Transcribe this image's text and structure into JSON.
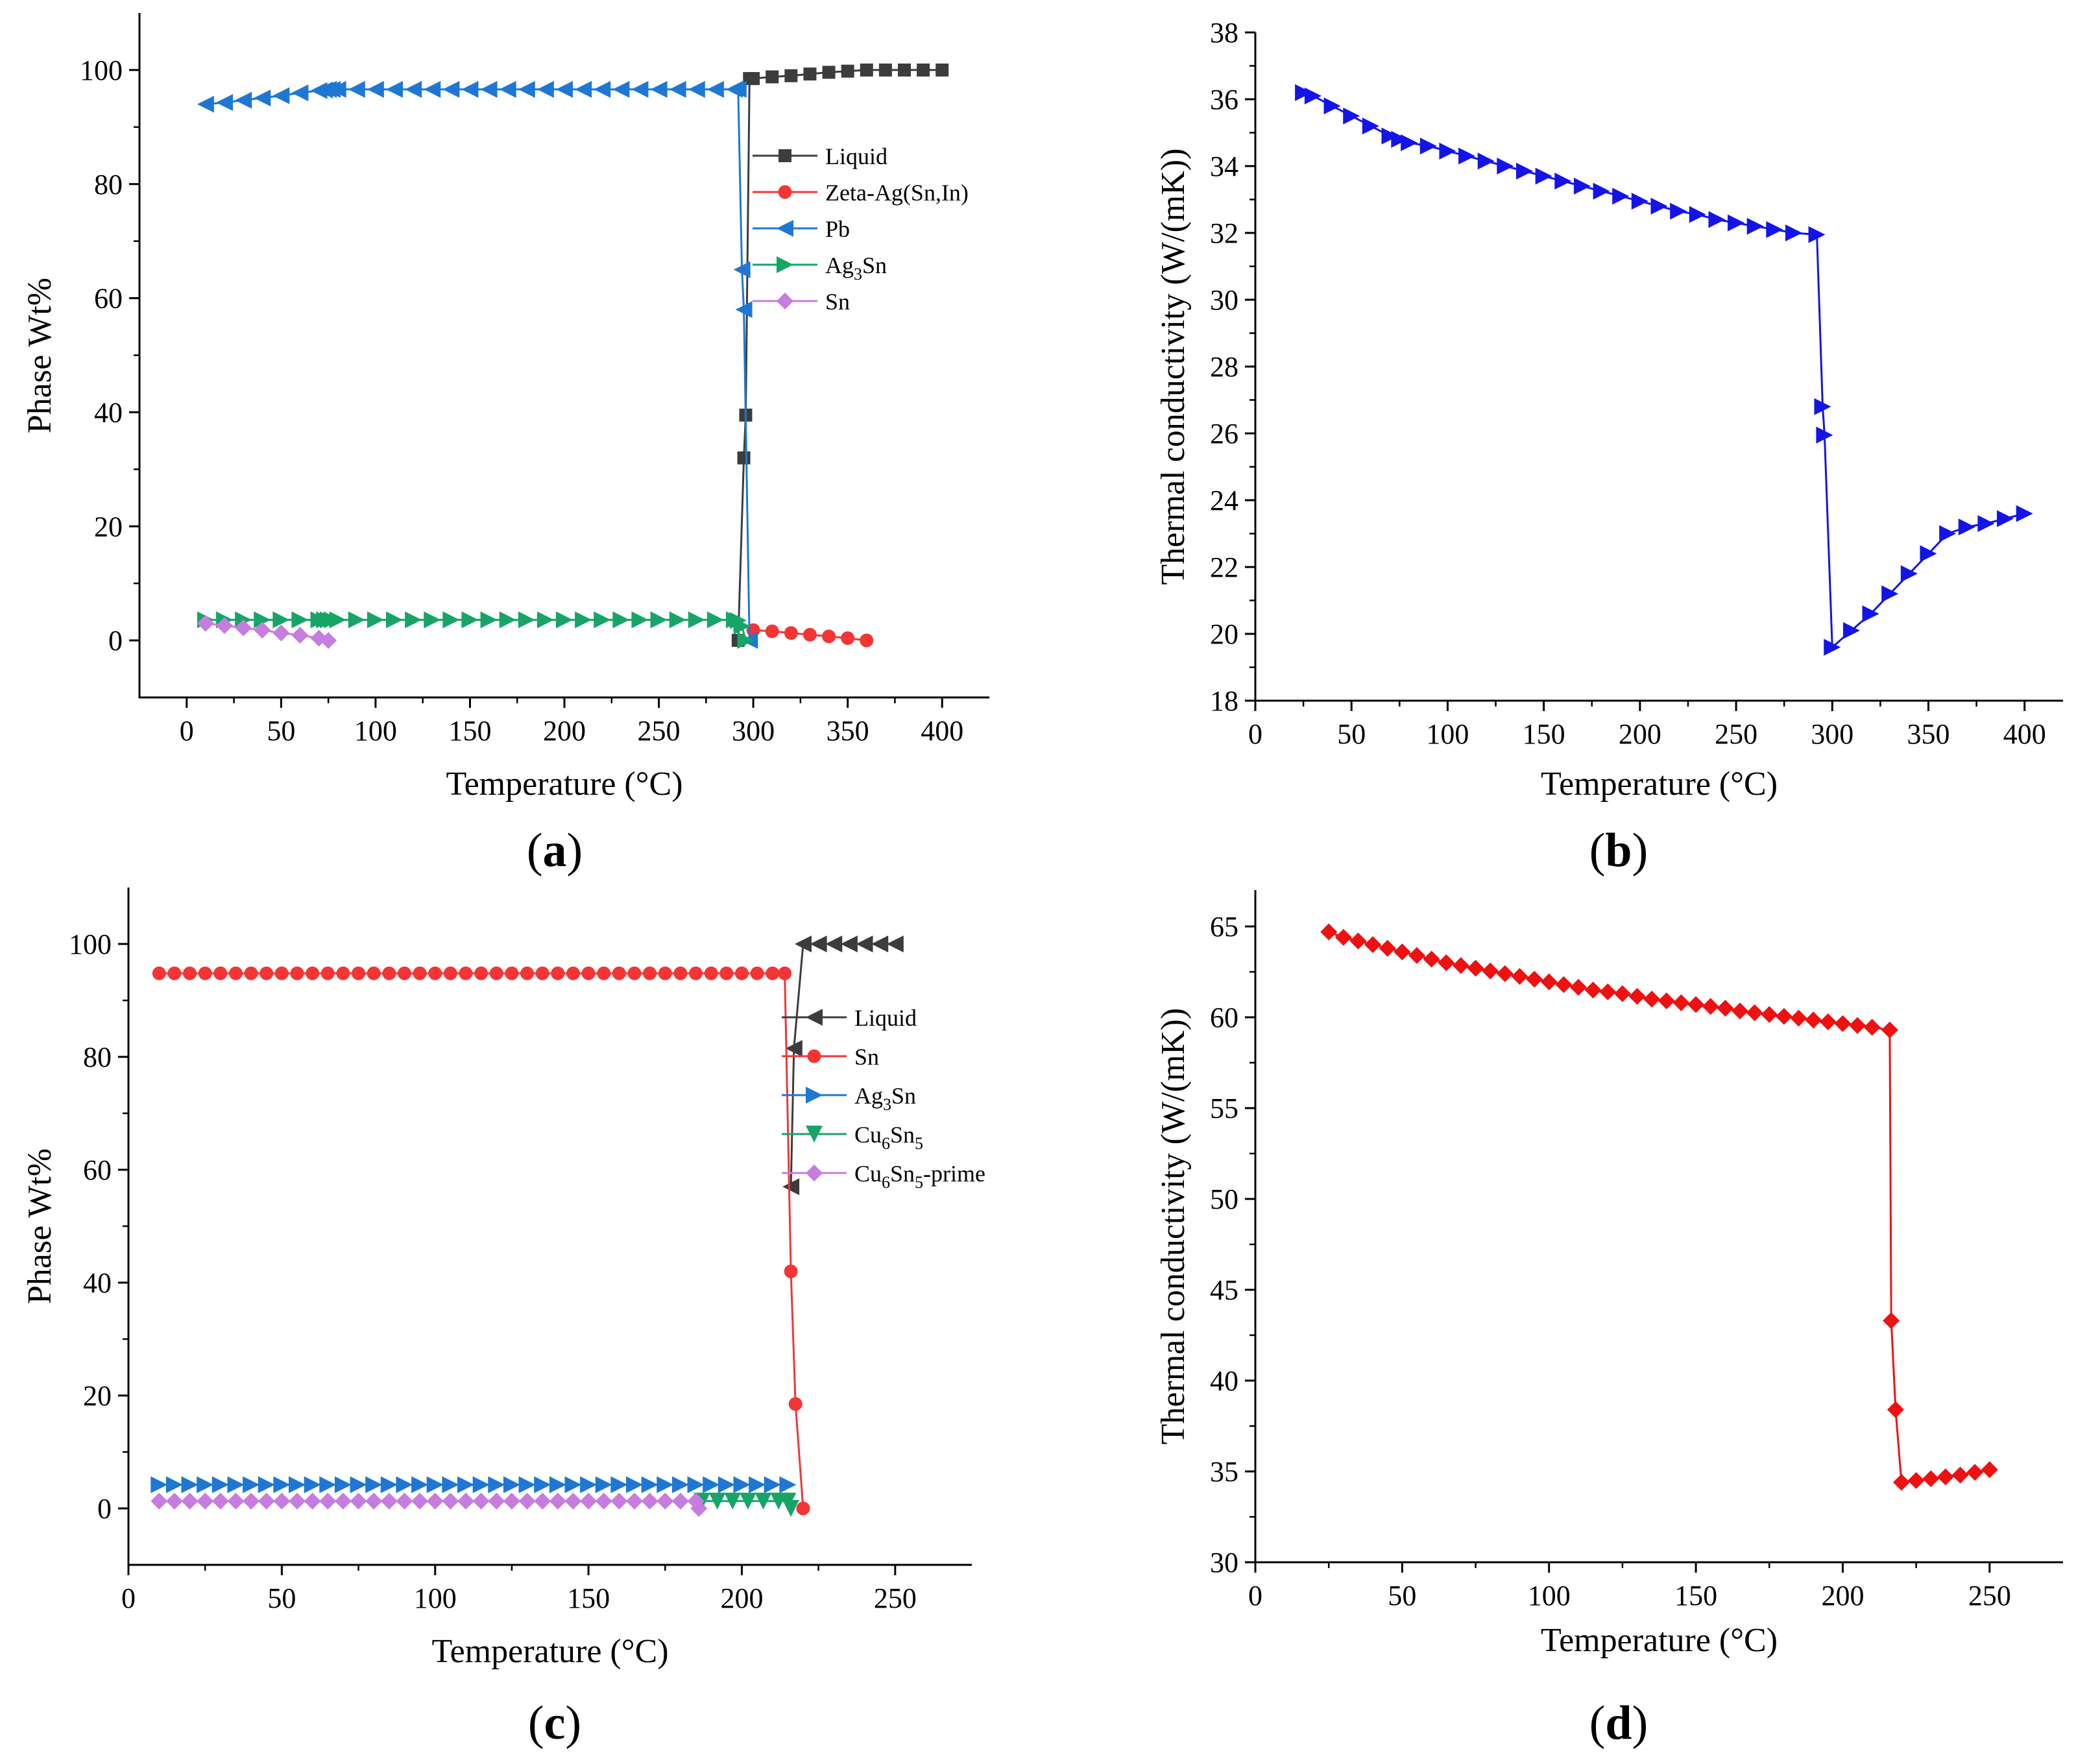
{
  "chart_data": [
    {
      "panel": "a",
      "type": "line",
      "xlabel": "Temperature (°C)",
      "ylabel": "Phase Wt%",
      "xlim": [
        -25,
        425
      ],
      "ylim": [
        -10,
        110
      ],
      "xticks": [
        0,
        50,
        100,
        150,
        200,
        250,
        300,
        350,
        400
      ],
      "yticks": [
        0,
        20,
        40,
        60,
        80,
        100
      ],
      "legend_position": "upper-right",
      "series": [
        {
          "name": "Liquid",
          "label_parts": [
            [
              "Liquid",
              ""
            ]
          ],
          "color": "#3c3c3c",
          "marker": "square",
          "x": [
            292,
            295,
            296,
            298,
            300,
            310,
            320,
            330,
            340,
            350,
            360,
            370,
            380,
            390,
            400
          ],
          "y": [
            0,
            32,
            39.5,
            98.5,
            98.5,
            98.8,
            99,
            99.3,
            99.6,
            99.8,
            100,
            100,
            100,
            100,
            100
          ]
        },
        {
          "name": "Zeta-Ag(Sn,In)",
          "label_parts": [
            [
              "Zeta-Ag(Sn,In)",
              ""
            ]
          ],
          "color": "#f33535",
          "marker": "circle",
          "x": [
            300,
            310,
            320,
            330,
            340,
            350,
            360
          ],
          "y": [
            1.8,
            1.6,
            1.3,
            1.0,
            0.7,
            0.4,
            0
          ]
        },
        {
          "name": "Pb",
          "label_parts": [
            [
              "Pb",
              ""
            ]
          ],
          "color": "#1f77d4",
          "marker": "triangle-left",
          "x": [
            10,
            20,
            30,
            40,
            50,
            60,
            70,
            73,
            75,
            77,
            80,
            90,
            100,
            110,
            120,
            130,
            140,
            150,
            160,
            170,
            180,
            190,
            200,
            210,
            220,
            230,
            240,
            250,
            260,
            270,
            280,
            290,
            292,
            294,
            295,
            298
          ],
          "y": [
            94,
            94.3,
            94.7,
            95.1,
            95.5,
            96,
            96.4,
            96.5,
            96.6,
            96.6,
            96.6,
            96.6,
            96.6,
            96.6,
            96.6,
            96.6,
            96.6,
            96.6,
            96.6,
            96.6,
            96.6,
            96.6,
            96.6,
            96.6,
            96.6,
            96.6,
            96.6,
            96.6,
            96.6,
            96.6,
            96.6,
            96.6,
            96.6,
            65,
            58,
            0
          ]
        },
        {
          "name": "Ag3Sn",
          "label_parts": [
            [
              "Ag",
              ""
            ],
            [
              "3",
              "sub"
            ],
            [
              "Sn",
              ""
            ]
          ],
          "color": "#17a567",
          "marker": "triangle-right",
          "x": [
            10,
            20,
            30,
            40,
            50,
            60,
            70,
            73,
            75,
            77,
            80,
            90,
            100,
            110,
            120,
            130,
            140,
            150,
            160,
            170,
            180,
            190,
            200,
            210,
            220,
            230,
            240,
            250,
            260,
            270,
            280,
            290,
            292,
            294,
            296
          ],
          "y": [
            3.6,
            3.6,
            3.6,
            3.6,
            3.6,
            3.6,
            3.6,
            3.6,
            3.6,
            3.6,
            3.6,
            3.6,
            3.6,
            3.6,
            3.6,
            3.6,
            3.6,
            3.6,
            3.6,
            3.6,
            3.6,
            3.6,
            3.6,
            3.6,
            3.6,
            3.6,
            3.6,
            3.6,
            3.6,
            3.6,
            3.6,
            3.6,
            3.5,
            2.5,
            0
          ]
        },
        {
          "name": "Sn",
          "label_parts": [
            [
              "Sn",
              ""
            ]
          ],
          "color": "#c77ce0",
          "marker": "diamond",
          "x": [
            10,
            20,
            30,
            40,
            50,
            60,
            70,
            75
          ],
          "y": [
            3,
            2.6,
            2.2,
            1.8,
            1.3,
            0.9,
            0.4,
            0
          ]
        }
      ]
    },
    {
      "panel": "b",
      "type": "line",
      "xlabel": "Temperature (°C)",
      "ylabel": "Thermal conductivity (W/(mK))",
      "xlim": [
        0,
        420
      ],
      "ylim": [
        18,
        38
      ],
      "xticks": [
        0,
        50,
        100,
        150,
        200,
        250,
        300,
        350,
        400
      ],
      "yticks": [
        18,
        20,
        22,
        24,
        26,
        28,
        30,
        32,
        34,
        36,
        38
      ],
      "series": [
        {
          "name": "Thermal conductivity",
          "color": "#1414e8",
          "marker": "triangle-right",
          "x": [
            25,
            30,
            40,
            50,
            60,
            70,
            75,
            80,
            90,
            100,
            110,
            120,
            130,
            140,
            150,
            160,
            170,
            180,
            190,
            200,
            210,
            220,
            230,
            240,
            250,
            260,
            270,
            280,
            292,
            295,
            296,
            300,
            310,
            320,
            330,
            340,
            350,
            360,
            370,
            380,
            390,
            400
          ],
          "y": [
            36.2,
            36.1,
            35.8,
            35.5,
            35.2,
            34.9,
            34.8,
            34.7,
            34.6,
            34.45,
            34.3,
            34.15,
            34.0,
            33.85,
            33.7,
            33.55,
            33.4,
            33.25,
            33.1,
            32.95,
            32.8,
            32.65,
            32.55,
            32.4,
            32.3,
            32.2,
            32.1,
            32.0,
            31.95,
            26.8,
            25.95,
            19.6,
            20.1,
            20.6,
            21.2,
            21.8,
            22.4,
            23.0,
            23.2,
            23.3,
            23.45,
            23.6
          ]
        }
      ]
    },
    {
      "panel": "c",
      "type": "line",
      "xlabel": "Temperature (°C)",
      "ylabel": "Phase Wt%",
      "xlim": [
        0,
        275
      ],
      "ylim": [
        -10,
        110
      ],
      "xticks": [
        0,
        50,
        100,
        150,
        200,
        250
      ],
      "yticks": [
        0,
        20,
        40,
        60,
        80,
        100
      ],
      "legend_position": "upper-right",
      "series": [
        {
          "name": "Liquid",
          "label_parts": [
            [
              "Liquid",
              ""
            ]
          ],
          "color": "#3c3c3c",
          "marker": "triangle-left",
          "x": [
            216,
            217,
            220,
            225,
            230,
            235,
            240,
            245,
            250
          ],
          "y": [
            57,
            81.5,
            100,
            100,
            100,
            100,
            100,
            100,
            100
          ]
        },
        {
          "name": "Sn",
          "label_parts": [
            [
              "Sn",
              ""
            ]
          ],
          "color": "#f33535",
          "marker": "circle",
          "x": [
            10,
            15,
            20,
            25,
            30,
            35,
            40,
            45,
            50,
            55,
            60,
            65,
            70,
            75,
            80,
            85,
            90,
            95,
            100,
            105,
            110,
            115,
            120,
            125,
            130,
            135,
            140,
            145,
            150,
            155,
            160,
            165,
            170,
            175,
            180,
            185,
            190,
            195,
            200,
            205,
            210,
            214,
            216,
            217.5,
            220
          ],
          "y": [
            94.8,
            94.8,
            94.8,
            94.8,
            94.8,
            94.8,
            94.8,
            94.8,
            94.8,
            94.8,
            94.8,
            94.8,
            94.8,
            94.8,
            94.8,
            94.8,
            94.8,
            94.8,
            94.8,
            94.8,
            94.8,
            94.8,
            94.8,
            94.8,
            94.8,
            94.8,
            94.8,
            94.8,
            94.8,
            94.8,
            94.8,
            94.8,
            94.8,
            94.8,
            94.8,
            94.8,
            94.8,
            94.8,
            94.8,
            94.8,
            94.8,
            94.8,
            42,
            18.5,
            0
          ]
        },
        {
          "name": "Ag3Sn",
          "label_parts": [
            [
              "Ag",
              ""
            ],
            [
              "3",
              "sub"
            ],
            [
              "Sn",
              ""
            ]
          ],
          "color": "#1f77d4",
          "marker": "triangle-right",
          "x": [
            10,
            15,
            20,
            25,
            30,
            35,
            40,
            45,
            50,
            55,
            60,
            65,
            70,
            75,
            80,
            85,
            90,
            95,
            100,
            105,
            110,
            115,
            120,
            125,
            130,
            135,
            140,
            145,
            150,
            155,
            160,
            165,
            170,
            175,
            180,
            185,
            190,
            195,
            200,
            205,
            210,
            215
          ],
          "y": [
            4.2,
            4.2,
            4.2,
            4.2,
            4.2,
            4.2,
            4.2,
            4.2,
            4.2,
            4.2,
            4.2,
            4.2,
            4.2,
            4.2,
            4.2,
            4.2,
            4.2,
            4.2,
            4.2,
            4.2,
            4.2,
            4.2,
            4.2,
            4.2,
            4.2,
            4.2,
            4.2,
            4.2,
            4.2,
            4.2,
            4.2,
            4.2,
            4.2,
            4.2,
            4.2,
            4.2,
            4.2,
            4.2,
            4.2,
            4.2,
            4.2,
            4.2
          ]
        },
        {
          "name": "Cu6Sn5",
          "label_parts": [
            [
              "Cu",
              ""
            ],
            [
              "6",
              "sub"
            ],
            [
              "Sn",
              ""
            ],
            [
              "5",
              "sub"
            ]
          ],
          "color": "#17a567",
          "marker": "triangle-down",
          "x": [
            187,
            192,
            197,
            202,
            207,
            212,
            215,
            216
          ],
          "y": [
            1.3,
            1.3,
            1.3,
            1.3,
            1.3,
            1.3,
            1.3,
            0
          ]
        },
        {
          "name": "Cu6Sn5-prime",
          "label_parts": [
            [
              "Cu",
              ""
            ],
            [
              "6",
              "sub"
            ],
            [
              "Sn",
              ""
            ],
            [
              "5",
              "sub"
            ],
            [
              "-prime",
              ""
            ]
          ],
          "color": "#c77ce0",
          "marker": "diamond",
          "x": [
            10,
            15,
            20,
            25,
            30,
            35,
            40,
            45,
            50,
            55,
            60,
            65,
            70,
            75,
            80,
            85,
            90,
            95,
            100,
            105,
            110,
            115,
            120,
            125,
            130,
            135,
            140,
            145,
            150,
            155,
            160,
            165,
            170,
            175,
            180,
            185,
            186
          ],
          "y": [
            1.3,
            1.3,
            1.3,
            1.3,
            1.3,
            1.3,
            1.3,
            1.3,
            1.3,
            1.3,
            1.3,
            1.3,
            1.3,
            1.3,
            1.3,
            1.3,
            1.3,
            1.3,
            1.3,
            1.3,
            1.3,
            1.3,
            1.3,
            1.3,
            1.3,
            1.3,
            1.3,
            1.3,
            1.3,
            1.3,
            1.3,
            1.3,
            1.3,
            1.3,
            1.3,
            1.3,
            0
          ]
        }
      ]
    },
    {
      "panel": "d",
      "type": "line",
      "xlabel": "Temperature (°C)",
      "ylabel": "Thermal conductivity (W/(mK))",
      "xlim": [
        0,
        275
      ],
      "ylim": [
        30,
        67
      ],
      "xticks": [
        0,
        50,
        100,
        150,
        200,
        250
      ],
      "yticks": [
        30,
        35,
        40,
        45,
        50,
        55,
        60,
        65
      ],
      "series": [
        {
          "name": "Thermal conductivity",
          "color": "#ee1111",
          "marker": "diamond",
          "x": [
            25,
            30,
            35,
            40,
            45,
            50,
            55,
            60,
            65,
            70,
            75,
            80,
            85,
            90,
            95,
            100,
            105,
            110,
            115,
            120,
            125,
            130,
            135,
            140,
            145,
            150,
            155,
            160,
            165,
            170,
            175,
            180,
            185,
            190,
            195,
            200,
            205,
            210,
            216,
            216.5,
            218,
            220,
            225,
            230,
            235,
            240,
            245,
            250
          ],
          "y": [
            64.7,
            64.4,
            64.2,
            64.0,
            63.8,
            63.6,
            63.4,
            63.2,
            63.0,
            62.85,
            62.7,
            62.55,
            62.4,
            62.25,
            62.1,
            61.95,
            61.8,
            61.65,
            61.5,
            61.4,
            61.3,
            61.15,
            61.0,
            60.9,
            60.8,
            60.7,
            60.6,
            60.5,
            60.35,
            60.25,
            60.15,
            60.05,
            59.95,
            59.85,
            59.75,
            59.65,
            59.55,
            59.45,
            59.3,
            43.3,
            38.4,
            34.4,
            34.5,
            34.6,
            34.7,
            34.8,
            34.95,
            35.1
          ]
        }
      ]
    }
  ],
  "panel_labels": {
    "a": "(a)",
    "b": "(b)",
    "c": "(c)",
    "d": "(d)"
  }
}
